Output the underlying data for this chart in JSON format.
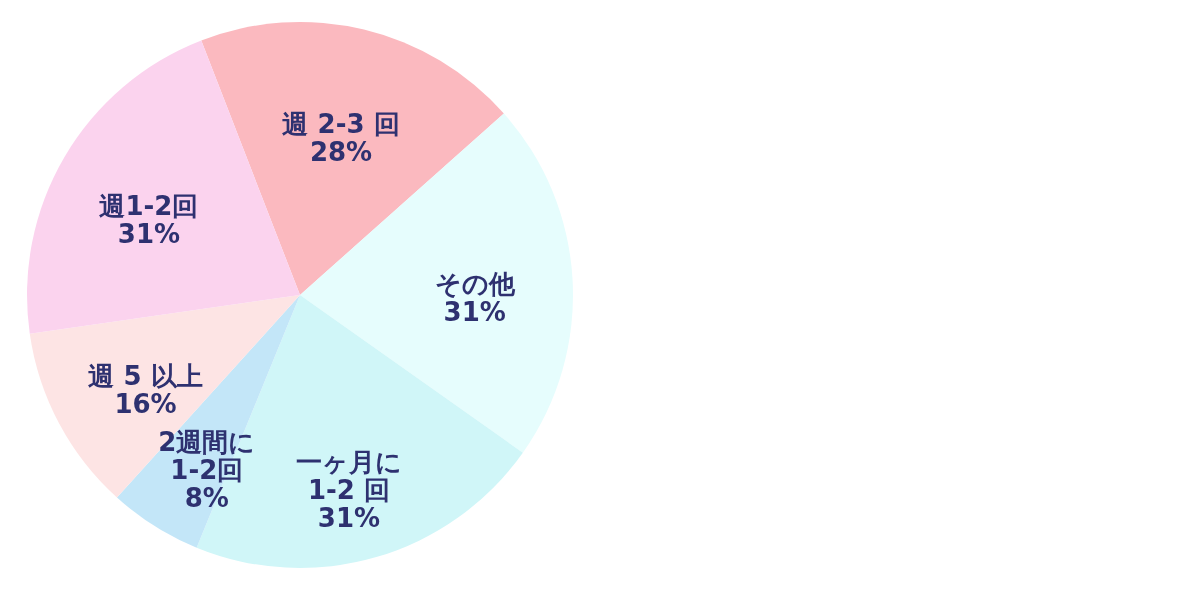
{
  "chart_data": {
    "type": "pie",
    "categories": [
      "週 2-3 回",
      "その他",
      "一ヶ月に\n1-2 回",
      "2週間に\n1-2回",
      "週 5 以上",
      "週1-2回"
    ],
    "values": [
      28,
      31,
      31,
      8,
      16,
      31
    ],
    "value_labels": [
      "28%",
      "31%",
      "31%",
      "8%",
      "16%",
      "31%"
    ],
    "colors": [
      "#fbb9bf",
      "#e6fdfd",
      "#d0f6f8",
      "#c3e6f8",
      "#fde4e4",
      "#fbd3ee"
    ],
    "legend": false
  }
}
